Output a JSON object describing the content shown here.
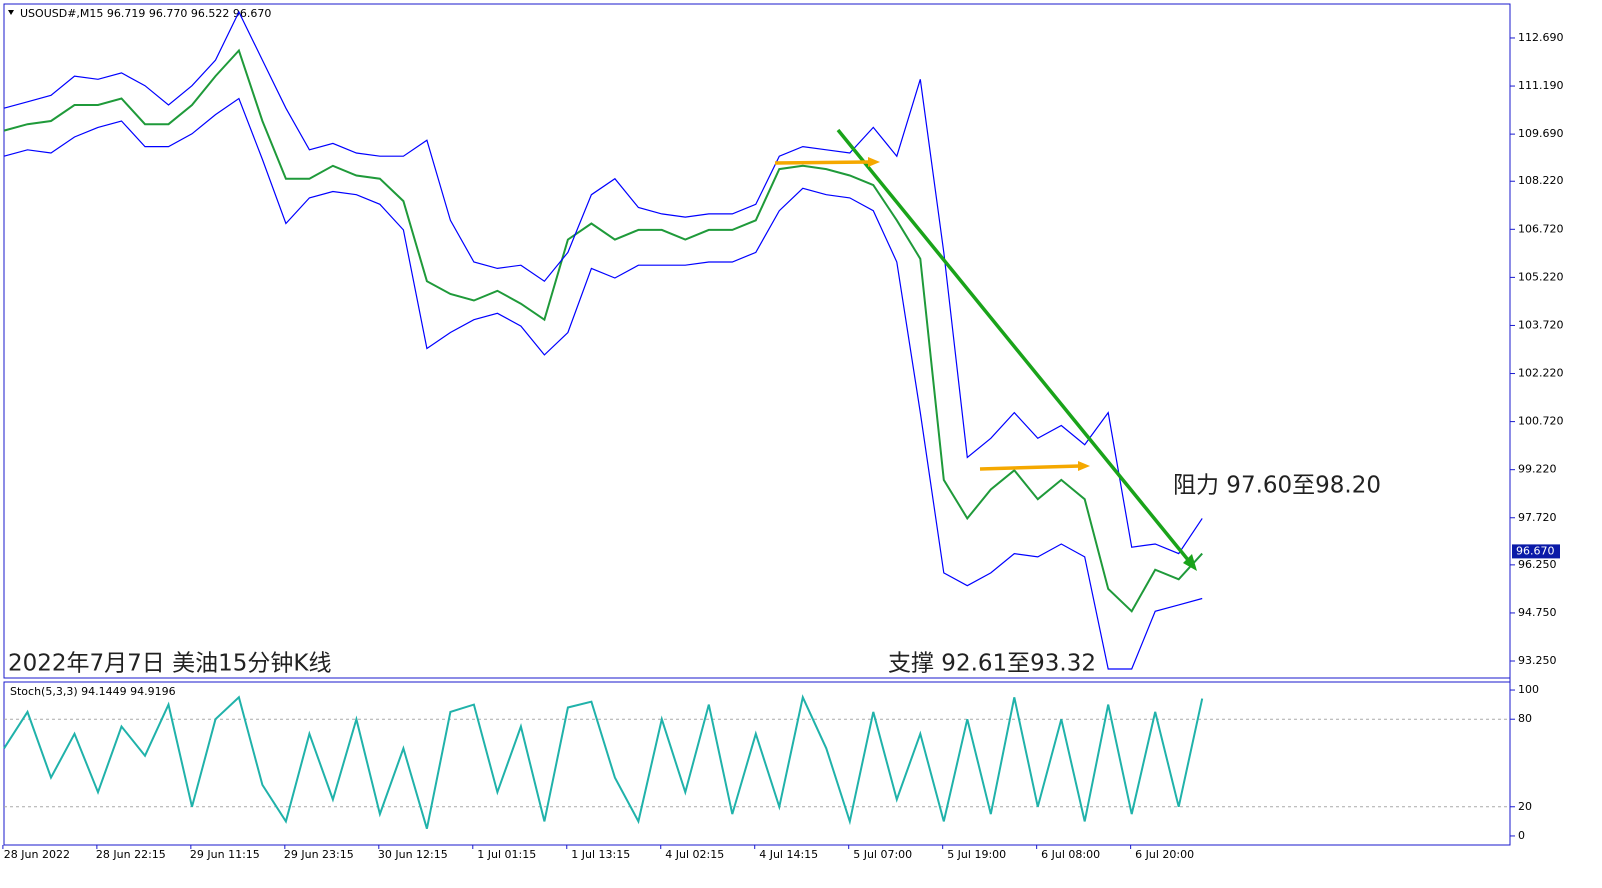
{
  "chart_data": [
    {
      "type": "line",
      "title": "USOUSD#,M15  96.719 96.770 96.522 96.670",
      "annotations": [
        "2022年7月7日 美油15分钟K线",
        "阻力 97.60至98.20",
        "支撑 92.61至93.32"
      ],
      "last_price": {
        "value": 96.67,
        "label": "96.670"
      },
      "xlim": [
        0,
        64.1
      ],
      "ylim": [
        92.72,
        113.75
      ],
      "yticks": [
        {
          "value": 112.69,
          "label": "112.690"
        },
        {
          "value": 111.19,
          "label": "111.190"
        },
        {
          "value": 109.69,
          "label": "109.690"
        },
        {
          "value": 108.22,
          "label": "108.220"
        },
        {
          "value": 106.72,
          "label": "106.720"
        },
        {
          "value": 105.22,
          "label": "105.220"
        },
        {
          "value": 103.72,
          "label": "103.720"
        },
        {
          "value": 102.22,
          "label": "102.220"
        },
        {
          "value": 100.72,
          "label": "100.720"
        },
        {
          "value": 99.22,
          "label": "99.220"
        },
        {
          "value": 97.72,
          "label": "97.720"
        },
        {
          "value": 96.25,
          "label": "96.250"
        },
        {
          "value": 94.75,
          "label": "94.750"
        },
        {
          "value": 93.25,
          "label": "93.250"
        }
      ],
      "series": [
        {
          "color": "#1f9a3a",
          "values": [
            109.8,
            110.0,
            110.1,
            110.6,
            110.6,
            110.8,
            110.0,
            110.0,
            110.6,
            111.5,
            112.3,
            110.1,
            108.3,
            108.3,
            108.7,
            108.4,
            108.3,
            107.6,
            105.1,
            104.7,
            104.5,
            104.8,
            104.4,
            103.9,
            106.4,
            106.9,
            106.4,
            106.7,
            106.7,
            106.4,
            106.7,
            106.7,
            107.0,
            108.6,
            108.7,
            108.6,
            108.4,
            108.1,
            107.0,
            105.8,
            98.9,
            97.7,
            98.6,
            99.2,
            98.3,
            98.9,
            98.3,
            95.5,
            94.8,
            96.1,
            95.8,
            96.6
          ]
        },
        {
          "color": "#0000ff",
          "values": [
            110.5,
            110.7,
            110.9,
            111.5,
            111.4,
            111.6,
            111.2,
            110.6,
            111.2,
            112.0,
            113.5,
            112.0,
            110.5,
            109.2,
            109.4,
            109.1,
            109.0,
            109.0,
            109.5,
            107.0,
            105.7,
            105.5,
            105.6,
            105.1,
            106.0,
            107.8,
            108.3,
            107.4,
            107.2,
            107.1,
            107.2,
            107.2,
            107.5,
            109.0,
            109.3,
            109.2,
            109.1,
            109.9,
            109.0,
            111.4,
            106.0,
            99.6,
            100.2,
            101.0,
            100.2,
            100.6,
            100.0,
            101.0,
            96.8,
            96.9,
            96.6,
            97.7
          ]
        },
        {
          "color": "#0000ff",
          "values": [
            109.0,
            109.2,
            109.1,
            109.6,
            109.9,
            110.1,
            109.3,
            109.3,
            109.7,
            110.3,
            110.8,
            108.9,
            106.9,
            107.7,
            107.9,
            107.8,
            107.5,
            106.7,
            103.0,
            103.5,
            103.9,
            104.1,
            103.7,
            102.8,
            103.5,
            105.5,
            105.2,
            105.6,
            105.6,
            105.6,
            105.7,
            105.7,
            106.0,
            107.3,
            108.0,
            107.8,
            107.7,
            107.3,
            105.7,
            101.0,
            96.0,
            95.6,
            96.0,
            96.6,
            96.5,
            96.9,
            96.5,
            93.0,
            93.0,
            94.8,
            95.0,
            95.2
          ]
        }
      ]
    },
    {
      "type": "line",
      "title": "Stoch(5,3,3) 94.1449 94.9196",
      "xlim": [
        0,
        64.1
      ],
      "ylim": [
        -6.2,
        105.5
      ],
      "yticks": [
        0,
        20,
        80,
        100
      ],
      "levels": [
        20,
        80
      ],
      "xticks": [
        {
          "value": 1.4,
          "label": "28 Jun 2022"
        },
        {
          "value": 5.4,
          "label": "28 Jun 22:15"
        },
        {
          "value": 9.4,
          "label": "29 Jun 11:15"
        },
        {
          "value": 13.4,
          "label": "29 Jun 23:15"
        },
        {
          "value": 17.4,
          "label": "30 Jun 12:15"
        },
        {
          "value": 21.4,
          "label": "1 Jul 01:15"
        },
        {
          "value": 25.4,
          "label": "1 Jul 13:15"
        },
        {
          "value": 29.4,
          "label": "4 Jul 02:15"
        },
        {
          "value": 33.4,
          "label": "4 Jul 14:15"
        },
        {
          "value": 37.4,
          "label": "5 Jul 07:00"
        },
        {
          "value": 41.4,
          "label": "5 Jul 19:00"
        },
        {
          "value": 45.4,
          "label": "6 Jul 08:00"
        },
        {
          "value": 49.4,
          "label": "6 Jul 20:00"
        }
      ],
      "series": [
        {
          "color": "#20b2aa",
          "values": [
            60,
            85,
            40,
            70,
            30,
            75,
            55,
            90,
            20,
            80,
            95,
            35,
            10,
            70,
            25,
            80,
            15,
            60,
            5,
            85,
            90,
            30,
            75,
            10,
            88,
            92,
            40,
            10,
            80,
            30,
            90,
            15,
            70,
            20,
            95,
            60,
            10,
            85,
            25,
            70,
            10,
            80,
            15,
            95,
            20,
            80,
            10,
            90,
            15,
            85,
            20,
            94.1
          ]
        }
      ]
    }
  ]
}
